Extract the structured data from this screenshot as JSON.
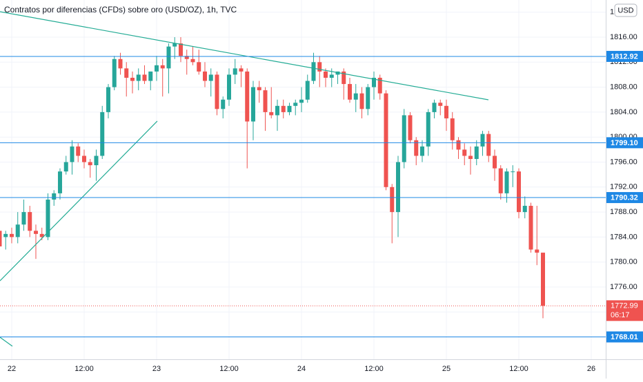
{
  "chart_data": {
    "type": "candlestick",
    "title": "Contratos por diferencias (CFDs) sobre oro (USD/OZ), 1h, TVC",
    "currency_button": "USD",
    "up_color": "#26a69a",
    "down_color": "#ef5350",
    "level_color": "#1e88e5",
    "trend_color": "#22ab94",
    "grid": true,
    "xlim": [
      -1.94,
      98.4
    ],
    "ylim": [
      1764.43,
      1821.95
    ],
    "xticks": [
      {
        "value": 0,
        "label": "22"
      },
      {
        "value": 12,
        "label": "12:00"
      },
      {
        "value": 24,
        "label": "23"
      },
      {
        "value": 36,
        "label": "12:00"
      },
      {
        "value": 48,
        "label": "24"
      },
      {
        "value": 60,
        "label": "12:00"
      },
      {
        "value": 72,
        "label": "25"
      },
      {
        "value": 84,
        "label": "12:00"
      },
      {
        "value": 96,
        "label": "26"
      }
    ],
    "yticks": [
      {
        "value": 1772,
        "label": "1772.00"
      },
      {
        "value": 1776,
        "label": "1776.00"
      },
      {
        "value": 1780,
        "label": "1780.00"
      },
      {
        "value": 1784,
        "label": "1784.00"
      },
      {
        "value": 1788,
        "label": "1788.00"
      },
      {
        "value": 1792,
        "label": "1792.00"
      },
      {
        "value": 1796,
        "label": "1796.00"
      },
      {
        "value": 1800,
        "label": "1800.00"
      },
      {
        "value": 1804,
        "label": "1804.00"
      },
      {
        "value": 1808,
        "label": "1808.00"
      },
      {
        "value": 1812,
        "label": "1812.00"
      },
      {
        "value": 1816,
        "label": "1816.00"
      },
      {
        "value": 1820,
        "label": "1820.00"
      }
    ],
    "candles": {
      "x": [
        -2,
        -1,
        0,
        1,
        2,
        3,
        4,
        5,
        6,
        7,
        8,
        9,
        10,
        11,
        12,
        13,
        14,
        15,
        16,
        17,
        18,
        19,
        20,
        21,
        22,
        23,
        24,
        25,
        26,
        27,
        28,
        29,
        30,
        31,
        32,
        33,
        34,
        35,
        36,
        37,
        38,
        39,
        40,
        41,
        42,
        43,
        44,
        45,
        46,
        47,
        48,
        49,
        50,
        51,
        52,
        53,
        54,
        55,
        56,
        57,
        58,
        59,
        60,
        61,
        62,
        63,
        64,
        65,
        66,
        67,
        68,
        69,
        70,
        71,
        72,
        73,
        74,
        75,
        76,
        77,
        78,
        79,
        80,
        81,
        82,
        83,
        84,
        85,
        86,
        87,
        88
      ],
      "open": [
        1785,
        1784,
        1784.5,
        1784,
        1786,
        1788,
        1785,
        1784.5,
        1784,
        1790,
        1791,
        1794.5,
        1796,
        1798.5,
        1797,
        1796,
        1795.5,
        1797,
        1804,
        1808,
        1812.5,
        1811,
        1809.5,
        1809,
        1810,
        1809,
        1810.5,
        1811.5,
        1811,
        1814.5,
        1815,
        1813,
        1812.5,
        1812,
        1810.5,
        1809,
        1810,
        1804.5,
        1806,
        1810,
        1811,
        1810.5,
        1802.5,
        1808,
        1807.5,
        1804,
        1803.5,
        1805,
        1804,
        1805,
        1805.5,
        1806,
        1809,
        1812,
        1810.5,
        1809.5,
        1810,
        1810.5,
        1808.5,
        1806,
        1807,
        1804.5,
        1808,
        1809.5,
        1807,
        1792,
        1788,
        1796,
        1803.5,
        1799.5,
        1797,
        1798.5,
        1804,
        1805.5,
        1805,
        1803,
        1799.5,
        1798,
        1797,
        1796.5,
        1798.5,
        1800.5,
        1797,
        1795,
        1791,
        1794.5,
        1794.5,
        1788,
        1789,
        1782,
        1781.5
      ],
      "high": [
        1787,
        1785,
        1785.5,
        1788,
        1790,
        1789,
        1786,
        1785.5,
        1791,
        1791.5,
        1795,
        1797,
        1799.5,
        1799,
        1798,
        1796.5,
        1798,
        1805,
        1808.5,
        1813,
        1813.5,
        1812,
        1810.5,
        1811,
        1811.5,
        1810.5,
        1813,
        1812.5,
        1815,
        1816,
        1816,
        1814,
        1814.5,
        1814,
        1812,
        1811,
        1810.5,
        1806.5,
        1811,
        1812.5,
        1811.5,
        1811,
        1809,
        1809,
        1808,
        1808,
        1806,
        1806,
        1805.5,
        1806,
        1808,
        1810,
        1813.5,
        1813,
        1811,
        1811,
        1810.5,
        1811,
        1809.5,
        1808.5,
        1808,
        1808.5,
        1810.5,
        1810,
        1807.5,
        1792.5,
        1797,
        1804.5,
        1804,
        1800,
        1799.5,
        1804.5,
        1806,
        1806,
        1806,
        1804,
        1800,
        1799,
        1798.5,
        1799.5,
        1801,
        1801,
        1798,
        1795.5,
        1795,
        1795.5,
        1795,
        1790.5,
        1789.5,
        1789,
        1781.5
      ],
      "low": [
        1781,
        1782,
        1783,
        1783,
        1785,
        1784,
        1780.5,
        1783.5,
        1783.5,
        1789,
        1790,
        1794,
        1794,
        1796,
        1795,
        1793.5,
        1793,
        1796.5,
        1803,
        1807.5,
        1810,
        1806.5,
        1807,
        1807.5,
        1808.5,
        1807.5,
        1809,
        1806.5,
        1807,
        1812.5,
        1812,
        1810,
        1811.5,
        1810,
        1808,
        1806.5,
        1803.5,
        1803,
        1805,
        1808.5,
        1808,
        1795,
        1799.5,
        1805.5,
        1801,
        1803,
        1801,
        1803,
        1803.5,
        1803.5,
        1804,
        1805.5,
        1808.5,
        1808,
        1808,
        1808,
        1808.5,
        1806,
        1805.5,
        1804,
        1803,
        1803.5,
        1806,
        1806,
        1791.5,
        1783,
        1784,
        1795,
        1799,
        1795.5,
        1796,
        1797,
        1803,
        1803.5,
        1801,
        1798,
        1796.5,
        1795.5,
        1794,
        1795.5,
        1797,
        1796,
        1793,
        1790,
        1789.5,
        1792,
        1787,
        1787,
        1781.5,
        1779.5,
        1771
      ],
      "close": [
        1782.5,
        1784.5,
        1784,
        1786,
        1788,
        1785,
        1784.5,
        1784,
        1790,
        1791,
        1794.5,
        1796,
        1798.5,
        1797,
        1796,
        1795.5,
        1797,
        1804,
        1808,
        1812.5,
        1811,
        1809.5,
        1809,
        1810,
        1809,
        1810.5,
        1811.5,
        1811,
        1814.5,
        1815,
        1813,
        1812.5,
        1812,
        1810.5,
        1809,
        1810,
        1804.5,
        1806,
        1810,
        1811,
        1810.5,
        1802.5,
        1808,
        1807.5,
        1804,
        1803.5,
        1805,
        1804,
        1805,
        1805.5,
        1806,
        1809,
        1812,
        1810.5,
        1809.5,
        1810,
        1810.5,
        1808.5,
        1806,
        1807,
        1804.5,
        1808,
        1809.5,
        1807,
        1792,
        1788,
        1796,
        1803.5,
        1799.5,
        1797,
        1798.5,
        1804,
        1805.5,
        1805,
        1803,
        1799.5,
        1798,
        1797,
        1796.5,
        1798.5,
        1800.5,
        1797,
        1795,
        1791,
        1794.5,
        1794.5,
        1788,
        1789,
        1782,
        1781.5,
        1772.99
      ]
    },
    "levels": [
      {
        "value": 1812.92,
        "label": "1812.92"
      },
      {
        "value": 1799.1,
        "label": "1799.10"
      },
      {
        "value": 1790.32,
        "label": "1790.32"
      },
      {
        "value": 1768.01,
        "label": "1768.01"
      }
    ],
    "current_price": {
      "value": 1772.99,
      "label": "1772.99",
      "countdown": "06:17"
    },
    "trendlines": [
      {
        "x": [
          -1.94,
          78.97
        ],
        "y": [
          1820.08,
          1805.97
        ]
      },
      {
        "x": [
          -1.94,
          24.11
        ],
        "y": [
          1776.99,
          1802.56
        ]
      },
      {
        "x": [
          -1.94,
          0.11
        ],
        "y": [
          1767.96,
          1766.52
        ]
      }
    ]
  }
}
